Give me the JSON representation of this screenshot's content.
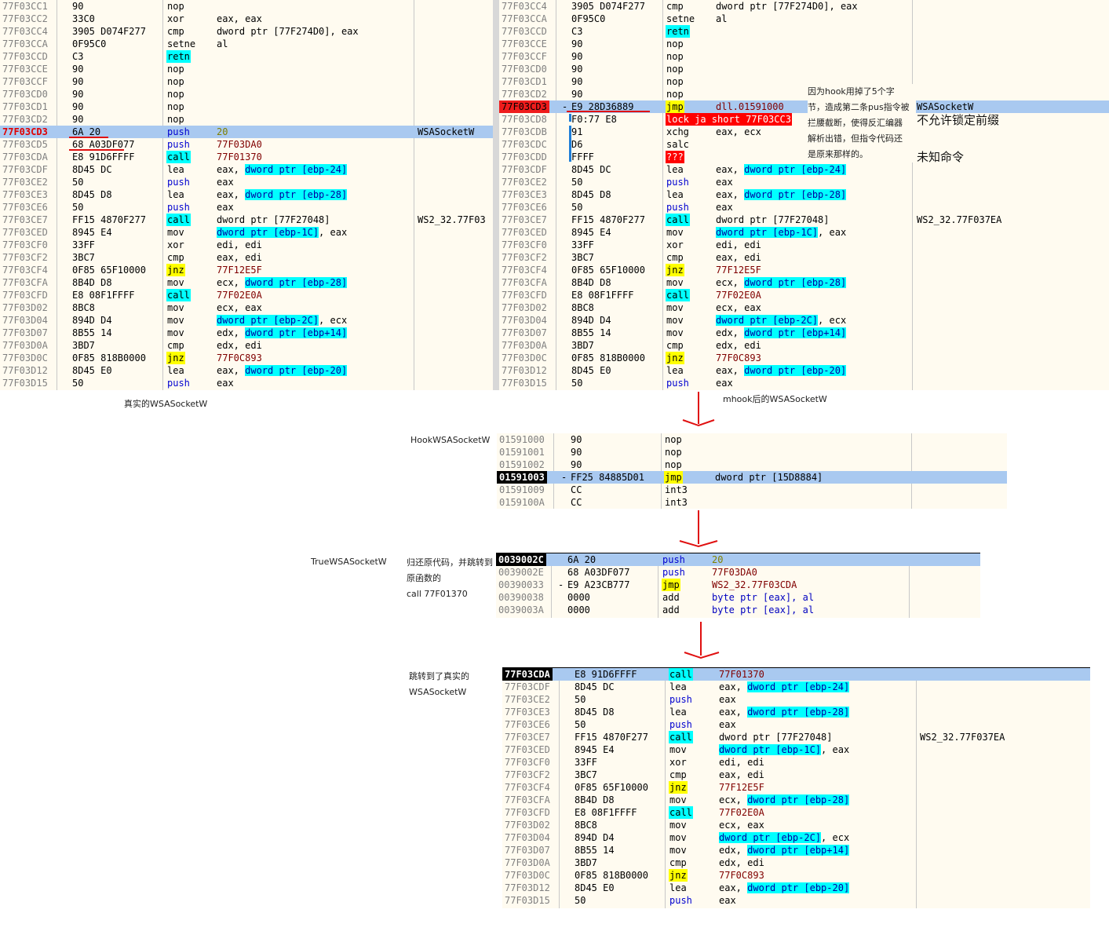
{
  "labels": {
    "left_caption": "真实的WSASocketW",
    "right_caption": "mhook后的WSASocketW",
    "hook_label": "HookWSASocketW",
    "true_label": "TrueWSASocketW",
    "true_note1": "归还原代码，并跳转到",
    "true_note2": "原函数的",
    "true_note3": "call 77F01370",
    "jump_note1": "跳转到了真实的",
    "jump_note2": "WSASocketW",
    "hook_note": [
      "因为hook用掉了5个字",
      "节，造成第二条pus指令被",
      "拦腰截断，使得反汇编器",
      "解析出错，但指令代码还",
      "是原来那样的。"
    ],
    "cm_nolock": "不允许锁定前缀",
    "cm_unknown": "未知命令"
  },
  "left_rows": [
    {
      "a": "77F03CC1",
      "b": "90",
      "m": "nop",
      "o": ""
    },
    {
      "a": "77F03CC2",
      "b": "33C0",
      "m": "xor",
      "o": "eax, eax"
    },
    {
      "a": "77F03CC4",
      "b": "3905 D074F277",
      "m": "cmp",
      "o": "dword ptr [77F274D0], eax"
    },
    {
      "a": "77F03CCA",
      "b": "0F95C0",
      "m": "setne",
      "o": "al"
    },
    {
      "a": "77F03CCD",
      "b": "C3",
      "m": "retn",
      "o": "",
      "mc": "cyan"
    },
    {
      "a": "77F03CCE",
      "b": "90",
      "m": "nop",
      "o": ""
    },
    {
      "a": "77F03CCF",
      "b": "90",
      "m": "nop",
      "o": ""
    },
    {
      "a": "77F03CD0",
      "b": "90",
      "m": "nop",
      "o": ""
    },
    {
      "a": "77F03CD1",
      "b": "90",
      "m": "nop",
      "o": ""
    },
    {
      "a": "77F03CD2",
      "b": "90",
      "m": "nop",
      "o": ""
    },
    {
      "a": "77F03CD3",
      "b": "6A 20",
      "m": "push",
      "o": "20",
      "mc": "blue",
      "oc": "green",
      "hl": true,
      "ac": "red",
      "cm": "WSASocketW"
    },
    {
      "a": "77F03CD5",
      "b": "68 A03DF077",
      "m": "push",
      "o": "77F03DA0",
      "mc": "blue",
      "oc": "dark"
    },
    {
      "a": "77F03CDA",
      "b": "E8 91D6FFFF",
      "m": "call",
      "o": "77F01370",
      "mc": "cyan",
      "oc": "dark"
    },
    {
      "a": "77F03CDF",
      "b": "8D45 DC",
      "m": "lea",
      "o": "eax, ",
      "mp": "dword ptr [ebp-24]"
    },
    {
      "a": "77F03CE2",
      "b": "50",
      "m": "push",
      "o": "eax",
      "mc": "blue"
    },
    {
      "a": "77F03CE3",
      "b": "8D45 D8",
      "m": "lea",
      "o": "eax, ",
      "mp": "dword ptr [ebp-28]"
    },
    {
      "a": "77F03CE6",
      "b": "50",
      "m": "push",
      "o": "eax",
      "mc": "blue"
    },
    {
      "a": "77F03CE7",
      "b": "FF15 4870F277",
      "m": "call",
      "o": "dword ptr [77F27048]",
      "mc": "cyan",
      "cm": "WS2_32.77F03"
    },
    {
      "a": "77F03CED",
      "b": "8945 E4",
      "m": "mov",
      "o": "",
      "mp": "dword ptr [ebp-1C]",
      "post": ", eax"
    },
    {
      "a": "77F03CF0",
      "b": "33FF",
      "m": "xor",
      "o": "edi, edi"
    },
    {
      "a": "77F03CF2",
      "b": "3BC7",
      "m": "cmp",
      "o": "eax, edi"
    },
    {
      "a": "77F03CF4",
      "b": "0F85 65F10000",
      "m": "jnz",
      "o": "77F12E5F",
      "mc": "yellow",
      "oc": "dark"
    },
    {
      "a": "77F03CFA",
      "b": "8B4D D8",
      "m": "mov",
      "o": "ecx, ",
      "mp": "dword ptr [ebp-28]"
    },
    {
      "a": "77F03CFD",
      "b": "E8 08F1FFFF",
      "m": "call",
      "o": "77F02E0A",
      "mc": "cyan",
      "oc": "dark"
    },
    {
      "a": "77F03D02",
      "b": "8BC8",
      "m": "mov",
      "o": "ecx, eax"
    },
    {
      "a": "77F03D04",
      "b": "894D D4",
      "m": "mov",
      "o": "",
      "mp": "dword ptr [ebp-2C]",
      "post": ", ecx"
    },
    {
      "a": "77F03D07",
      "b": "8B55 14",
      "m": "mov",
      "o": "edx, ",
      "mp": "dword ptr [ebp+14]"
    },
    {
      "a": "77F03D0A",
      "b": "3BD7",
      "m": "cmp",
      "o": "edx, edi"
    },
    {
      "a": "77F03D0C",
      "b": "0F85 818B0000",
      "m": "jnz",
      "o": "77F0C893",
      "mc": "yellow",
      "oc": "dark"
    },
    {
      "a": "77F03D12",
      "b": "8D45 E0",
      "m": "lea",
      "o": "eax, ",
      "mp": "dword ptr [ebp-20]"
    },
    {
      "a": "77F03D15",
      "b": "50",
      "m": "push",
      "o": "eax",
      "mc": "blue"
    }
  ],
  "right_rows": [
    {
      "a": "77F03CC4",
      "b": "3905 D074F277",
      "m": "cmp",
      "o": "dword ptr [77F274D0], eax"
    },
    {
      "a": "77F03CCA",
      "b": "0F95C0",
      "m": "setne",
      "o": "al"
    },
    {
      "a": "77F03CCD",
      "b": "C3",
      "m": "retn",
      "o": "",
      "mc": "cyan"
    },
    {
      "a": "77F03CCE",
      "b": "90",
      "m": "nop",
      "o": ""
    },
    {
      "a": "77F03CCF",
      "b": "90",
      "m": "nop",
      "o": ""
    },
    {
      "a": "77F03CD0",
      "b": "90",
      "m": "nop",
      "o": ""
    },
    {
      "a": "77F03CD1",
      "b": "90",
      "m": "nop",
      "o": ""
    },
    {
      "a": "77F03CD2",
      "b": "90",
      "m": "nop",
      "o": ""
    },
    {
      "a": "77F03CD3",
      "b": "E9 28D36889",
      "m": "jmp",
      "o": "dll.01591000",
      "mc": "yellow",
      "oc": "dark",
      "hl": true,
      "ac": "bp",
      "cm": "WSASocketW",
      "pre": "-"
    },
    {
      "a": "77F03CD8",
      "b": "F0:77 E8",
      "m": "lock ja short 77F03CC3",
      "o": "",
      "mc": "red"
    },
    {
      "a": "77F03CDB",
      "b": "91",
      "m": "xchg",
      "o": "eax, ecx"
    },
    {
      "a": "77F03CDC",
      "b": "D6",
      "m": "salc",
      "o": ""
    },
    {
      "a": "77F03CDD",
      "b": "FFFF",
      "m": "???",
      "o": "",
      "mc": "red"
    },
    {
      "a": "77F03CDF",
      "b": "8D45 DC",
      "m": "lea",
      "o": "eax, ",
      "mp": "dword ptr [ebp-24]"
    },
    {
      "a": "77F03CE2",
      "b": "50",
      "m": "push",
      "o": "eax",
      "mc": "blue"
    },
    {
      "a": "77F03CE3",
      "b": "8D45 D8",
      "m": "lea",
      "o": "eax, ",
      "mp": "dword ptr [ebp-28]"
    },
    {
      "a": "77F03CE6",
      "b": "50",
      "m": "push",
      "o": "eax",
      "mc": "blue"
    },
    {
      "a": "77F03CE7",
      "b": "FF15 4870F277",
      "m": "call",
      "o": "dword ptr [77F27048]",
      "mc": "cyan",
      "cm": "WS2_32.77F037EA"
    },
    {
      "a": "77F03CED",
      "b": "8945 E4",
      "m": "mov",
      "o": "",
      "mp": "dword ptr [ebp-1C]",
      "post": ", eax"
    },
    {
      "a": "77F03CF0",
      "b": "33FF",
      "m": "xor",
      "o": "edi, edi"
    },
    {
      "a": "77F03CF2",
      "b": "3BC7",
      "m": "cmp",
      "o": "eax, edi"
    },
    {
      "a": "77F03CF4",
      "b": "0F85 65F10000",
      "m": "jnz",
      "o": "77F12E5F",
      "mc": "yellow",
      "oc": "dark"
    },
    {
      "a": "77F03CFA",
      "b": "8B4D D8",
      "m": "mov",
      "o": "ecx, ",
      "mp": "dword ptr [ebp-28]"
    },
    {
      "a": "77F03CFD",
      "b": "E8 08F1FFFF",
      "m": "call",
      "o": "77F02E0A",
      "mc": "cyan",
      "oc": "dark"
    },
    {
      "a": "77F03D02",
      "b": "8BC8",
      "m": "mov",
      "o": "ecx, eax"
    },
    {
      "a": "77F03D04",
      "b": "894D D4",
      "m": "mov",
      "o": "",
      "mp": "dword ptr [ebp-2C]",
      "post": ", ecx"
    },
    {
      "a": "77F03D07",
      "b": "8B55 14",
      "m": "mov",
      "o": "edx, ",
      "mp": "dword ptr [ebp+14]"
    },
    {
      "a": "77F03D0A",
      "b": "3BD7",
      "m": "cmp",
      "o": "edx, edi"
    },
    {
      "a": "77F03D0C",
      "b": "0F85 818B0000",
      "m": "jnz",
      "o": "77F0C893",
      "mc": "yellow",
      "oc": "dark"
    },
    {
      "a": "77F03D12",
      "b": "8D45 E0",
      "m": "lea",
      "o": "eax, ",
      "mp": "dword ptr [ebp-20]"
    },
    {
      "a": "77F03D15",
      "b": "50",
      "m": "push",
      "o": "eax",
      "mc": "blue"
    }
  ],
  "hook_rows": [
    {
      "a": "01591000",
      "b": "90",
      "m": "nop",
      "o": ""
    },
    {
      "a": "01591001",
      "b": "90",
      "m": "nop",
      "o": ""
    },
    {
      "a": "01591002",
      "b": "90",
      "m": "nop",
      "o": ""
    },
    {
      "a": "01591003",
      "b": "FF25 84885D01",
      "m": "jmp",
      "o": "dword ptr [15D8884]",
      "mc": "yellow",
      "hl": true,
      "ac": "eip",
      "pre": "-"
    },
    {
      "a": "01591009",
      "b": "CC",
      "m": "int3",
      "o": ""
    },
    {
      "a": "0159100A",
      "b": "CC",
      "m": "int3",
      "o": ""
    }
  ],
  "true_rows": [
    {
      "a": "0039002C",
      "b": "6A 20",
      "m": "push",
      "o": "20",
      "mc": "blue",
      "oc": "green",
      "hl": true,
      "ac": "eip"
    },
    {
      "a": "0039002E",
      "b": "68 A03DF077",
      "m": "push",
      "o": "77F03DA0",
      "mc": "blue",
      "oc": "dark"
    },
    {
      "a": "00390033",
      "b": "E9 A23CB777",
      "m": "jmp",
      "o": "WS2_32.77F03CDA",
      "mc": "yellow",
      "oc": "dark",
      "pre": "-"
    },
    {
      "a": "00390038",
      "b": "0000",
      "m": "add",
      "o": "byte ptr [eax], al",
      "oc": "blue"
    },
    {
      "a": "0039003A",
      "b": "0000",
      "m": "add",
      "o": "byte ptr [eax], al",
      "oc": "blue"
    }
  ],
  "jump_rows": [
    {
      "a": "77F03CDA",
      "b": "E8 91D6FFFF",
      "m": "call",
      "o": "77F01370",
      "mc": "cyan",
      "oc": "dark",
      "hl": true,
      "ac": "eip"
    },
    {
      "a": "77F03CDF",
      "b": "8D45 DC",
      "m": "lea",
      "o": "eax, ",
      "mp": "dword ptr [ebp-24]"
    },
    {
      "a": "77F03CE2",
      "b": "50",
      "m": "push",
      "o": "eax",
      "mc": "blue"
    },
    {
      "a": "77F03CE3",
      "b": "8D45 D8",
      "m": "lea",
      "o": "eax, ",
      "mp": "dword ptr [ebp-28]"
    },
    {
      "a": "77F03CE6",
      "b": "50",
      "m": "push",
      "o": "eax",
      "mc": "blue"
    },
    {
      "a": "77F03CE7",
      "b": "FF15 4870F277",
      "m": "call",
      "o": "dword ptr [77F27048]",
      "mc": "cyan",
      "cm": "WS2_32.77F037EA"
    },
    {
      "a": "77F03CED",
      "b": "8945 E4",
      "m": "mov",
      "o": "",
      "mp": "dword ptr [ebp-1C]",
      "post": ", eax"
    },
    {
      "a": "77F03CF0",
      "b": "33FF",
      "m": "xor",
      "o": "edi, edi"
    },
    {
      "a": "77F03CF2",
      "b": "3BC7",
      "m": "cmp",
      "o": "eax, edi"
    },
    {
      "a": "77F03CF4",
      "b": "0F85 65F10000",
      "m": "jnz",
      "o": "77F12E5F",
      "mc": "yellow",
      "oc": "dark"
    },
    {
      "a": "77F03CFA",
      "b": "8B4D D8",
      "m": "mov",
      "o": "ecx, ",
      "mp": "dword ptr [ebp-28]"
    },
    {
      "a": "77F03CFD",
      "b": "E8 08F1FFFF",
      "m": "call",
      "o": "77F02E0A",
      "mc": "cyan",
      "oc": "dark"
    },
    {
      "a": "77F03D02",
      "b": "8BC8",
      "m": "mov",
      "o": "ecx, eax"
    },
    {
      "a": "77F03D04",
      "b": "894D D4",
      "m": "mov",
      "o": "",
      "mp": "dword ptr [ebp-2C]",
      "post": ", ecx"
    },
    {
      "a": "77F03D07",
      "b": "8B55 14",
      "m": "mov",
      "o": "edx, ",
      "mp": "dword ptr [ebp+14]"
    },
    {
      "a": "77F03D0A",
      "b": "3BD7",
      "m": "cmp",
      "o": "edx, edi"
    },
    {
      "a": "77F03D0C",
      "b": "0F85 818B0000",
      "m": "jnz",
      "o": "77F0C893",
      "mc": "yellow",
      "oc": "dark"
    },
    {
      "a": "77F03D12",
      "b": "8D45 E0",
      "m": "lea",
      "o": "eax, ",
      "mp": "dword ptr [ebp-20]"
    },
    {
      "a": "77F03D15",
      "b": "50",
      "m": "push",
      "o": "eax",
      "mc": "blue"
    }
  ]
}
